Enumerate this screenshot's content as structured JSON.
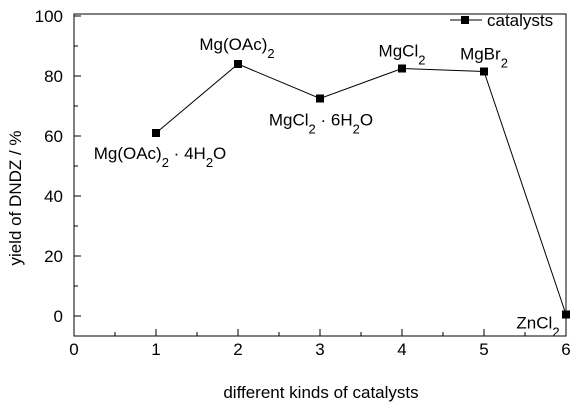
{
  "chart_data": {
    "type": "line",
    "title": "",
    "xlabel": "different kinds of catalysts",
    "ylabel": "yield of DNDZ / %",
    "xlim": [
      0,
      6
    ],
    "ylim": [
      -5,
      100
    ],
    "x_ticks": [
      0,
      1,
      2,
      3,
      4,
      5,
      6
    ],
    "y_ticks": [
      0,
      20,
      40,
      60,
      80,
      100
    ],
    "x_tick_labels": [
      "0",
      "1",
      "2",
      "3",
      "4",
      "5",
      "6"
    ],
    "y_tick_labels": [
      "0",
      "20",
      "40",
      "60",
      "80",
      "100"
    ],
    "grid": false,
    "legend_position": "top-right",
    "marker": "square",
    "line_color": "#000000",
    "series": [
      {
        "name": "catalysts",
        "x": [
          1,
          2,
          3,
          4,
          5,
          6
        ],
        "y": [
          61,
          84,
          72.5,
          82.5,
          81.5,
          0.5
        ],
        "point_labels": [
          "Mg(OAc)2·4H2O",
          "Mg(OAc)2",
          "MgCl2·6H2O",
          "MgCl2",
          "MgBr2",
          "ZnCl2"
        ]
      }
    ]
  }
}
